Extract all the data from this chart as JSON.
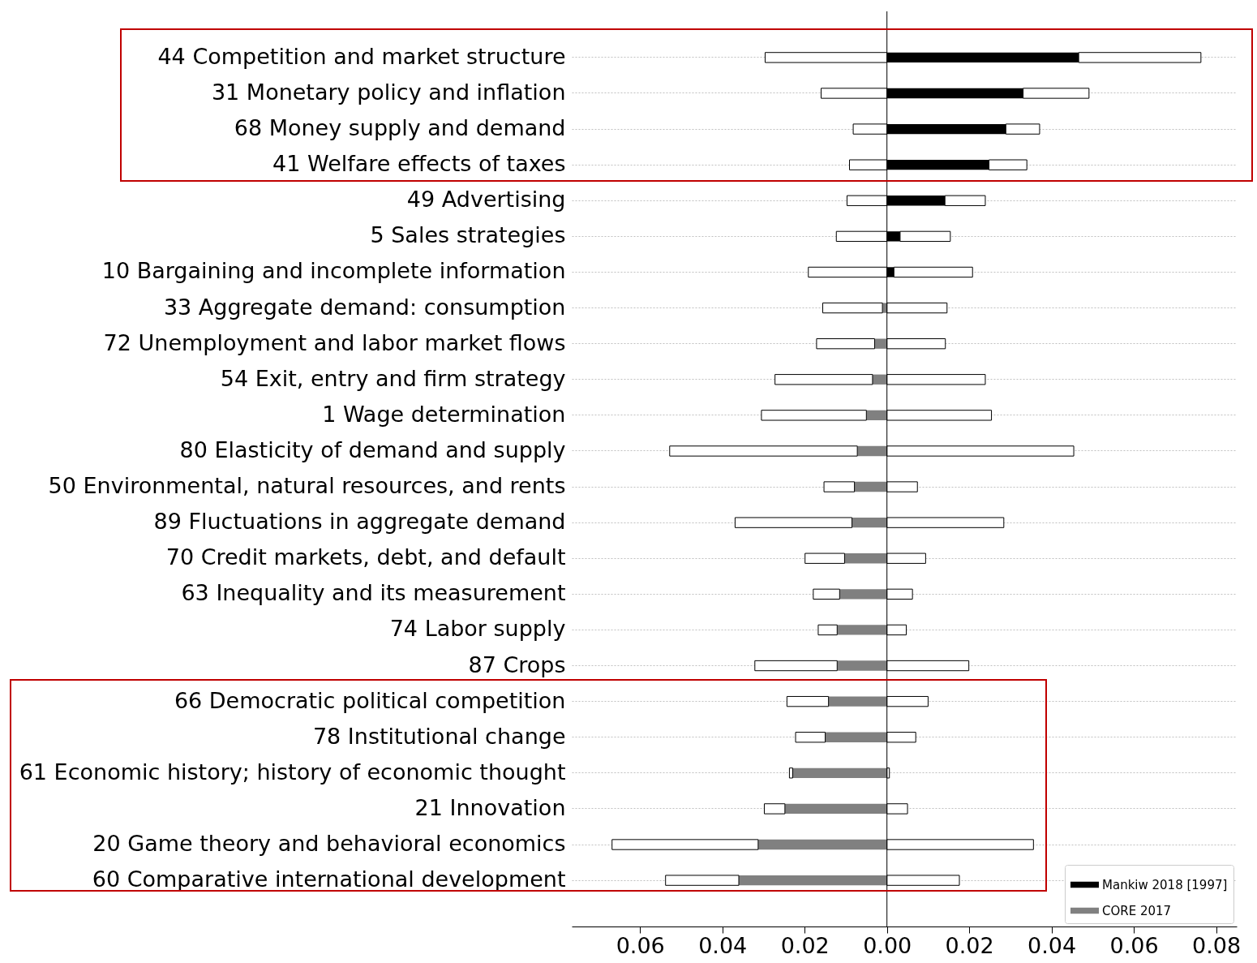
{
  "chart_data": {
    "type": "bar",
    "orientation": "horizontal",
    "stacked": true,
    "categories": [
      "44 Competition and market structure",
      "31 Monetary policy and inflation",
      "68 Money supply and demand",
      "41 Welfare effects of taxes",
      "49 Advertising",
      "5 Sales strategies",
      "10 Bargaining and incomplete information",
      "33 Aggregate demand: consumption",
      "72 Unemployment and labor market flows",
      "54 Exit, entry and firm strategy",
      "1 Wage determination",
      "80 Elasticity of demand and supply",
      "50 Environmental, natural resources, and rents",
      "89 Fluctuations in aggregate demand",
      "70 Credit markets, debt, and default",
      "63 Inequality and its measurement",
      "74 Labor supply",
      "87 Crops",
      "66 Democratic political competition",
      "78 Institutional change",
      "61 Economic history; history of economic thought",
      "21 Innovation",
      "20 Game theory and behavioral economics",
      "60 Comparative international development"
    ],
    "series": [
      {
        "name": "Mankiw 2018 [1997]",
        "color": "#000000",
        "values": [
          0.0466,
          0.0331,
          0.0289,
          0.0248,
          0.0141,
          0.0032,
          0.0017,
          null,
          null,
          null,
          null,
          null,
          null,
          null,
          null,
          null,
          null,
          null,
          null,
          null,
          null,
          null,
          null,
          null
        ]
      },
      {
        "name": "CORE 2017",
        "color": "#808080",
        "values": [
          null,
          null,
          null,
          null,
          null,
          null,
          null,
          -0.0011,
          -0.003,
          -0.0035,
          -0.005,
          -0.0072,
          -0.0079,
          -0.0085,
          -0.0103,
          -0.0115,
          -0.0121,
          -0.0121,
          -0.0142,
          -0.015,
          -0.0229,
          -0.0248,
          -0.0313,
          -0.036
        ]
      },
      {
        "color": "#ffffff",
        "values": [
          -0.0296,
          -0.016,
          -0.0082,
          -0.0091,
          -0.0097,
          -0.0123,
          -0.0191,
          -0.0145,
          -0.0141,
          -0.0237,
          -0.0255,
          -0.0456,
          -0.0074,
          -0.0284,
          -0.0096,
          -0.0064,
          -0.0046,
          -0.02,
          -0.0101,
          -0.0072,
          -0.0008,
          -0.005,
          -0.0355,
          -0.0178
        ]
      },
      {
        "color": "#ffffff",
        "values": [
          0.0297,
          0.016,
          0.0082,
          0.0092,
          0.0098,
          0.0122,
          0.0191,
          0.0146,
          0.0142,
          0.0239,
          0.0254,
          0.0454,
          0.0074,
          0.0284,
          0.0094,
          0.0062,
          0.0047,
          0.0199,
          0.01,
          0.007,
          0.0006,
          0.005,
          0.0356,
          0.0176
        ]
      }
    ],
    "xlim": [
      -0.0766,
      0.085
    ],
    "xticks": [
      {
        "value": -0.06,
        "label": "0.06"
      },
      {
        "value": -0.04,
        "label": "0.04"
      },
      {
        "value": -0.02,
        "label": "0.02"
      },
      {
        "value": 0,
        "label": "0.00"
      },
      0.02,
      0.04,
      0.06,
      0.08
    ],
    "grid": "y",
    "legend": "bottom right",
    "ref_lines": [
      {
        "axis": "x",
        "value": 0,
        "color": "#000000"
      }
    ]
  }
}
